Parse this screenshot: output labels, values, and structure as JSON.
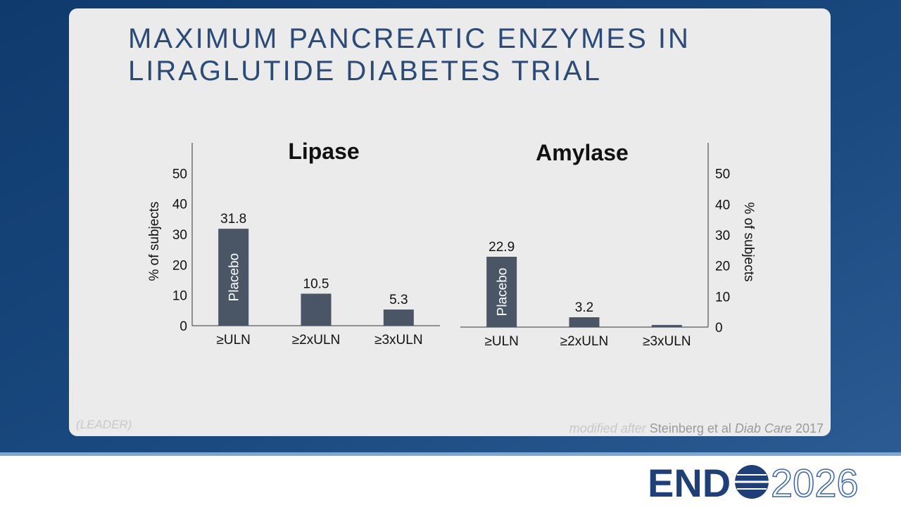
{
  "title": [
    "MAXIMUM PANCREATIC ENZYMES IN",
    "LIRAGLUTIDE DIABETES TRIAL"
  ],
  "chart_data": [
    {
      "type": "bar",
      "title": "Lipase",
      "y_label": "% of subjects",
      "y_axis_side": "left",
      "categories": [
        "≥ULN",
        "≥2xULN",
        "≥3xULN"
      ],
      "values": [
        31.8,
        10.5,
        5.3
      ],
      "data_labels": [
        true,
        true,
        true
      ],
      "annotation": {
        "bar": 0,
        "text": "Placebo"
      },
      "color": "#4a5566",
      "ylim": [
        0,
        60
      ],
      "yticks": [
        0,
        10,
        20,
        30,
        40,
        50
      ]
    },
    {
      "type": "bar",
      "title": "Amylase",
      "y_label": "% of subjects",
      "y_axis_side": "right",
      "categories": [
        "≥ULN",
        "≥2xULN",
        "≥3xULN"
      ],
      "values": [
        22.9,
        3.2,
        0.7
      ],
      "data_labels": [
        true,
        true,
        false
      ],
      "annotation": {
        "bar": 0,
        "text": "Placebo"
      },
      "color": "#4a5566",
      "ylim": [
        0,
        60
      ],
      "yticks": [
        0,
        10,
        20,
        30,
        40,
        50
      ]
    }
  ],
  "study": "(LEADER)",
  "citation": {
    "prefix": "modified after",
    "authors": "Steinberg et al",
    "journal": "Diab Care",
    "year": "2017"
  },
  "logo": {
    "left": "END",
    "right": "2026"
  }
}
